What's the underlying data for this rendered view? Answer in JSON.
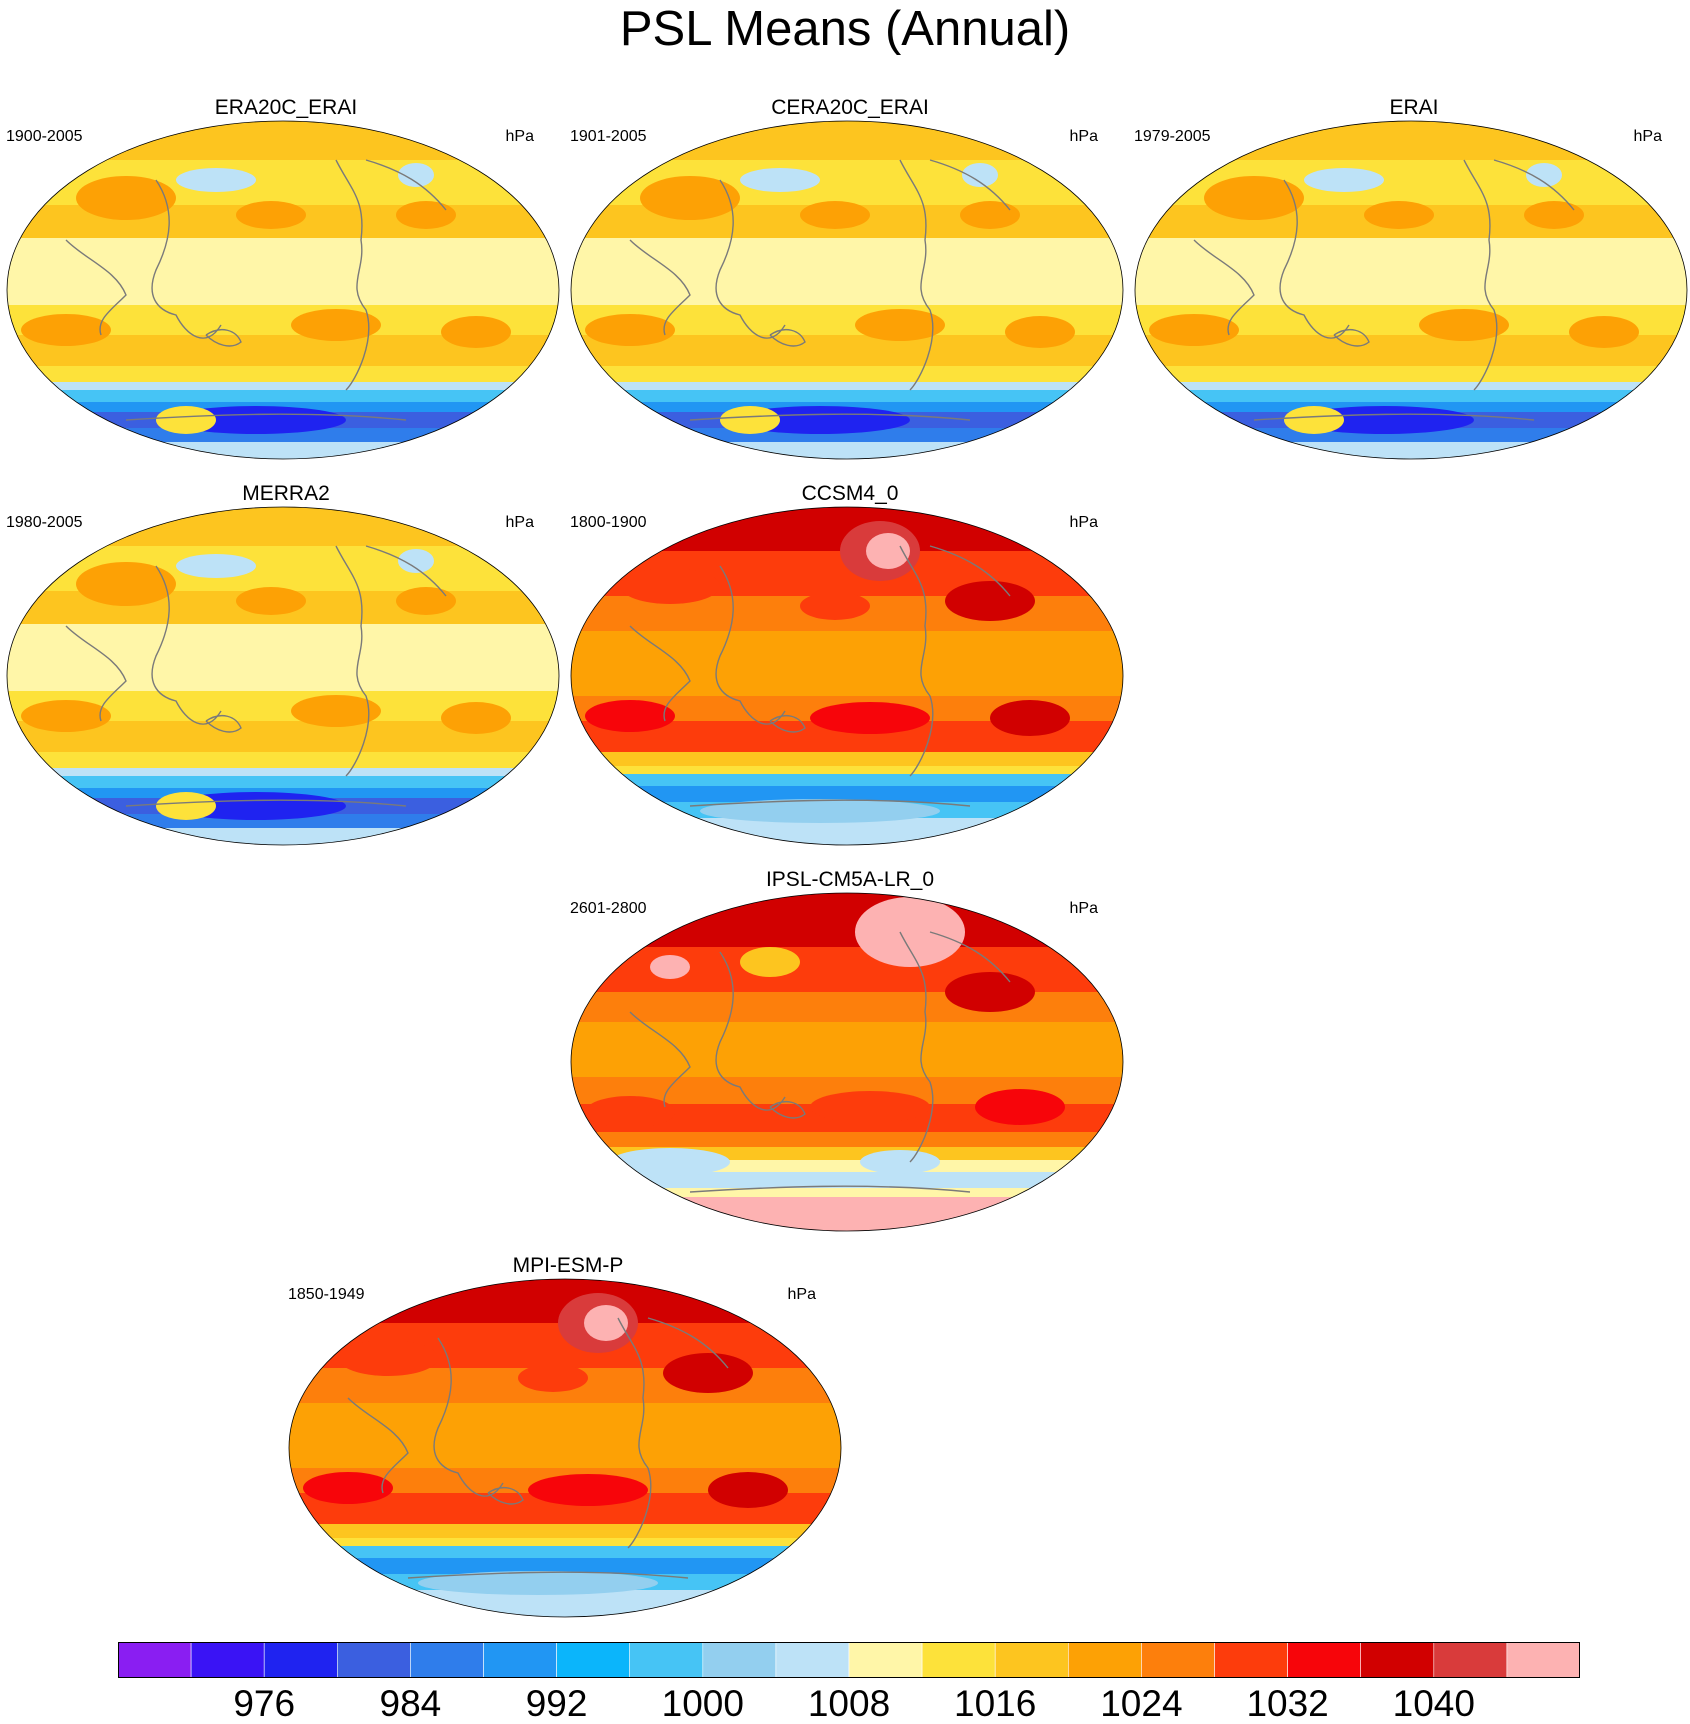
{
  "title": "PSL Means (Annual)",
  "panels": [
    {
      "title": "ERA20C_ERAI",
      "period": "1900-2005",
      "units": "hPa",
      "scheme": "obs"
    },
    {
      "title": "CERA20C_ERAI",
      "period": "1901-2005",
      "units": "hPa",
      "scheme": "obs"
    },
    {
      "title": "ERAI",
      "period": "1979-2005",
      "units": "hPa",
      "scheme": "obs"
    },
    {
      "title": "MERRA2",
      "period": "1980-2005",
      "units": "hPa",
      "scheme": "obs"
    },
    {
      "title": "CCSM4_0",
      "period": "1800-1900",
      "units": "hPa",
      "scheme": "model"
    },
    {
      "title": "IPSL-CM5A-LR_0",
      "period": "2601-2800",
      "units": "hPa",
      "scheme": "ipsl"
    },
    {
      "title": "MPI-ESM-P",
      "period": "1850-1949",
      "units": "hPa",
      "scheme": "model"
    }
  ],
  "colorbar": {
    "colors": [
      "#8a1ef2",
      "#3a13f5",
      "#1f23f0",
      "#3b5fe0",
      "#2f7deb",
      "#2196f3",
      "#0bb5fb",
      "#46c4f5",
      "#93cfef",
      "#bde2f7",
      "#fff6a8",
      "#fde23a",
      "#fdc51f",
      "#fda105",
      "#fd7f0c",
      "#fd3c0c",
      "#f7050a",
      "#d10000",
      "#d93b3b",
      "#fdb2b2"
    ],
    "tick_labels": [
      "976",
      "984",
      "992",
      "1000",
      "1008",
      "1016",
      "1024",
      "1032",
      "1040"
    ],
    "ticks": [
      976,
      984,
      992,
      1000,
      1008,
      1016,
      1024,
      1032,
      1040
    ]
  }
}
